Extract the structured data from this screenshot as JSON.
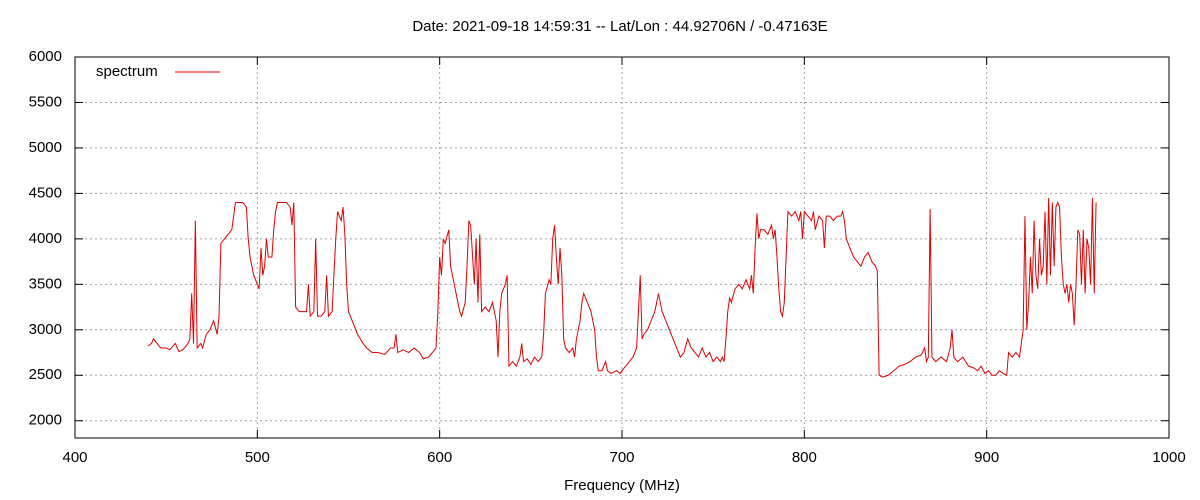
{
  "chart_data": {
    "type": "line",
    "title": "Date: 2021-09-18 14:59:31  --  Lat/Lon : 44.92706N / -0.47163E",
    "x_label": "Frequency (MHz)",
    "xlim": [
      400,
      1000
    ],
    "xticks": [
      400,
      500,
      600,
      700,
      800,
      900,
      1000
    ],
    "ylim": [
      1810,
      6000
    ],
    "yticks": [
      2000,
      2500,
      3000,
      3500,
      4000,
      4500,
      5000,
      5500,
      6000
    ],
    "grid": true,
    "legend": "top-left",
    "x": [
      440,
      442,
      443,
      445,
      447,
      450,
      452,
      455,
      457,
      459,
      460,
      462,
      463,
      464,
      465,
      466,
      467,
      469,
      470,
      472,
      474,
      476,
      478,
      479,
      480,
      482,
      484,
      486,
      488,
      490,
      492,
      494,
      495,
      496,
      498,
      500,
      501,
      502,
      503,
      504,
      505,
      506,
      508,
      509,
      510,
      511,
      513,
      516,
      518,
      519,
      520,
      521,
      523,
      525,
      527,
      528,
      529,
      531,
      532,
      533,
      535,
      537,
      538,
      539,
      541,
      542,
      543,
      544,
      545,
      546,
      547,
      548,
      549,
      550,
      552,
      555,
      558,
      560,
      563,
      566,
      570,
      573,
      575,
      576,
      577,
      580,
      583,
      586,
      589,
      591,
      594,
      596,
      598,
      599,
      600,
      601,
      602,
      603,
      605,
      606,
      608,
      610,
      611,
      612,
      614,
      615,
      616,
      617,
      619,
      620,
      621,
      622,
      623,
      625,
      627,
      629,
      631,
      632,
      633,
      634,
      636,
      637,
      638,
      640,
      642,
      644,
      645,
      646,
      648,
      650,
      652,
      654,
      656,
      657,
      658,
      660,
      661,
      662,
      663,
      664,
      665,
      666,
      667,
      668,
      669,
      671,
      673,
      674,
      675,
      677,
      678,
      679,
      681,
      683,
      685,
      686,
      687,
      689,
      691,
      692,
      694,
      697,
      699,
      700,
      702,
      704,
      706,
      708,
      710,
      711,
      712,
      714,
      716,
      718,
      720,
      722,
      724,
      726,
      728,
      730,
      732,
      734,
      736,
      738,
      740,
      742,
      744,
      746,
      748,
      750,
      752,
      754,
      755,
      756,
      757,
      758,
      759,
      760,
      762,
      764,
      766,
      768,
      770,
      771,
      772,
      773,
      774,
      775,
      776,
      778,
      780,
      782,
      783,
      784,
      785,
      786,
      787,
      788,
      789,
      790,
      791,
      793,
      795,
      797,
      798,
      799,
      800,
      802,
      804,
      805,
      806,
      808,
      810,
      811,
      812,
      814,
      816,
      818,
      820,
      821,
      822,
      823,
      825,
      827,
      829,
      831,
      833,
      835,
      836,
      837,
      839,
      840,
      841,
      843,
      846,
      849,
      852,
      855,
      858,
      861,
      864,
      866,
      867,
      868,
      869,
      870,
      872,
      875,
      878,
      880,
      881,
      882,
      884,
      887,
      890,
      893,
      895,
      897,
      899,
      901,
      903,
      905,
      907,
      909,
      911,
      912,
      914,
      916,
      918,
      919,
      920,
      921,
      922,
      923,
      924,
      925,
      926,
      927,
      928,
      929,
      930,
      931,
      932,
      933,
      934,
      935,
      936,
      937,
      938,
      939,
      940,
      941,
      942,
      943,
      944,
      945,
      946,
      947,
      948,
      949,
      950,
      951,
      952,
      953,
      954,
      955,
      956,
      957,
      958,
      959,
      960
    ],
    "series": [
      {
        "name": "spectrum",
        "color": "#e00000",
        "values": [
          2820,
          2850,
          2900,
          2850,
          2800,
          2800,
          2780,
          2850,
          2760,
          2780,
          2800,
          2850,
          2900,
          3400,
          2850,
          4200,
          2800,
          2850,
          2800,
          2950,
          3000,
          3100,
          2950,
          3150,
          3950,
          4000,
          4050,
          4100,
          4400,
          4400,
          4400,
          4350,
          4000,
          3800,
          3600,
          3500,
          3450,
          3900,
          3600,
          3700,
          4000,
          3800,
          3800,
          4100,
          4300,
          4400,
          4400,
          4400,
          4350,
          4150,
          4400,
          3250,
          3200,
          3200,
          3200,
          3500,
          3150,
          3200,
          4000,
          3150,
          3150,
          3200,
          3600,
          3150,
          3200,
          3600,
          4000,
          4300,
          4250,
          4200,
          4350,
          4050,
          3500,
          3200,
          3100,
          2950,
          2850,
          2800,
          2750,
          2750,
          2730,
          2800,
          2800,
          2950,
          2750,
          2780,
          2750,
          2800,
          2750,
          2680,
          2700,
          2750,
          2800,
          3200,
          3800,
          3600,
          4000,
          3950,
          4100,
          3700,
          3500,
          3300,
          3200,
          3150,
          3300,
          3700,
          4200,
          4150,
          3500,
          4000,
          3300,
          4050,
          3200,
          3250,
          3200,
          3300,
          3100,
          2700,
          3200,
          3400,
          3500,
          3600,
          2600,
          2650,
          2600,
          2700,
          2850,
          2650,
          2680,
          2620,
          2700,
          2650,
          2700,
          2950,
          3400,
          3550,
          3500,
          4000,
          4150,
          3800,
          3500,
          3900,
          3600,
          2900,
          2800,
          2750,
          2800,
          2700,
          2900,
          3100,
          3300,
          3400,
          3300,
          3200,
          3000,
          2700,
          2550,
          2550,
          2650,
          2550,
          2520,
          2550,
          2520,
          2550,
          2600,
          2650,
          2700,
          2800,
          3600,
          2900,
          2950,
          3000,
          3100,
          3200,
          3400,
          3200,
          3100,
          3000,
          2900,
          2800,
          2700,
          2750,
          2900,
          2800,
          2750,
          2700,
          2800,
          2700,
          2750,
          2650,
          2700,
          2650,
          2700,
          2650,
          2900,
          3200,
          3350,
          3300,
          3450,
          3500,
          3450,
          3550,
          3450,
          3600,
          3400,
          3900,
          4280,
          4000,
          4100,
          4100,
          4050,
          4150,
          4000,
          4100,
          3800,
          3450,
          3200,
          3150,
          3300,
          3800,
          4300,
          4250,
          4300,
          4200,
          4300,
          4000,
          4300,
          4250,
          4200,
          4300,
          4100,
          4250,
          4200,
          3900,
          4250,
          4250,
          4200,
          4250,
          4250,
          4300,
          4200,
          4000,
          3900,
          3800,
          3750,
          3700,
          3800,
          3850,
          3800,
          3750,
          3700,
          3650,
          2500,
          2480,
          2500,
          2550,
          2600,
          2620,
          2650,
          2700,
          2720,
          2800,
          2650,
          2700,
          4330,
          2700,
          2650,
          2700,
          2650,
          2800,
          3000,
          2700,
          2650,
          2700,
          2600,
          2580,
          2550,
          2600,
          2520,
          2550,
          2500,
          2500,
          2550,
          2520,
          2500,
          2750,
          2700,
          2750,
          2700,
          2850,
          3000,
          4250,
          3000,
          3300,
          3800,
          3400,
          4200,
          3600,
          3450,
          4000,
          3600,
          3700,
          4300,
          3500,
          4450,
          3600,
          4400,
          3700,
          4350,
          4400,
          4350,
          3800,
          3500,
          3400,
          3500,
          3300,
          3500,
          3400,
          3050,
          3500,
          4100,
          4050,
          3500,
          4100,
          3400,
          4000,
          3900,
          3500,
          4450,
          3400,
          4400
        ]
      }
    ]
  }
}
